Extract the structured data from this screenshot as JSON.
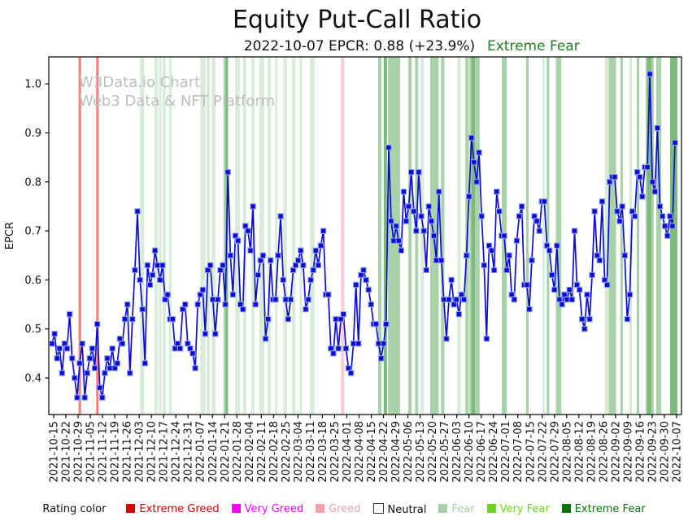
{
  "title": "Equity Put-Call Ratio",
  "subtitle": {
    "text": "2022-10-07 EPCR: 0.88 (+23.9%)",
    "rating": "Extreme Fear",
    "rating_color": "#1e7d1e"
  },
  "watermark": {
    "line1": "W3Data.io Chart",
    "line2": "Web3 Data & NFT Platform"
  },
  "chart_data": {
    "type": "line",
    "title": "Equity Put-Call Ratio",
    "xlabel": "",
    "ylabel": "EPCR",
    "ylim": [
      0.33,
      1.06
    ],
    "yticks": [
      0.4,
      0.5,
      0.6,
      0.7,
      0.8,
      0.9,
      1.0
    ],
    "grid": false,
    "legend_position": "bottom",
    "x_tick_labels": [
      "2021-10-15",
      "2021-10-22",
      "2021-10-29",
      "2021-11-05",
      "2021-11-12",
      "2021-11-19",
      "2021-11-26",
      "2021-12-03",
      "2021-12-10",
      "2021-12-17",
      "2021-12-24",
      "2021-12-31",
      "2022-01-07",
      "2022-01-14",
      "2022-01-21",
      "2022-01-28",
      "2022-02-04",
      "2022-02-11",
      "2022-02-18",
      "2022-02-25",
      "2022-03-04",
      "2022-03-11",
      "2022-03-18",
      "2022-03-25",
      "2022-04-01",
      "2022-04-08",
      "2022-04-15",
      "2022-04-22",
      "2022-04-29",
      "2022-05-06",
      "2022-05-13",
      "2022-05-20",
      "2022-05-27",
      "2022-06-03",
      "2022-06-10",
      "2022-06-17",
      "2022-06-24",
      "2022-07-01",
      "2022-07-08",
      "2022-07-15",
      "2022-07-22",
      "2022-07-29",
      "2022-08-05",
      "2022-08-12",
      "2022-08-19",
      "2022-08-26",
      "2022-09-02",
      "2022-09-09",
      "2022-09-16",
      "2022-09-23",
      "2022-09-30",
      "2022-10-07"
    ],
    "series": [
      {
        "name": "EPCR",
        "color": "#0c0cd4",
        "marker": "square",
        "marker_edge_color": "#93a6ea",
        "values": [
          0.47,
          0.49,
          0.44,
          0.46,
          0.41,
          0.47,
          0.46,
          0.53,
          0.44,
          0.4,
          0.36,
          0.43,
          0.47,
          0.36,
          0.41,
          0.44,
          0.46,
          0.42,
          0.51,
          0.38,
          0.36,
          0.41,
          0.44,
          0.42,
          0.46,
          0.42,
          0.43,
          0.48,
          0.47,
          0.52,
          0.55,
          0.41,
          0.52,
          0.62,
          0.74,
          0.6,
          0.54,
          0.43,
          0.63,
          0.59,
          0.61,
          0.66,
          0.63,
          0.6,
          0.63,
          0.56,
          0.57,
          0.52,
          0.52,
          0.46,
          0.47,
          0.46,
          0.54,
          0.55,
          0.47,
          0.46,
          0.45,
          0.42,
          0.55,
          0.57,
          0.58,
          0.49,
          0.62,
          0.63,
          0.56,
          0.49,
          0.56,
          0.62,
          0.63,
          0.55,
          0.82,
          0.65,
          0.57,
          0.69,
          0.68,
          0.55,
          0.54,
          0.71,
          0.7,
          0.66,
          0.75,
          0.55,
          0.61,
          0.64,
          0.65,
          0.48,
          0.52,
          0.64,
          0.56,
          0.56,
          0.65,
          0.73,
          0.6,
          0.56,
          0.52,
          0.56,
          0.62,
          0.63,
          0.64,
          0.66,
          0.63,
          0.54,
          0.56,
          0.6,
          0.62,
          0.66,
          0.63,
          0.67,
          0.7,
          0.57,
          0.57,
          0.46,
          0.45,
          0.52,
          0.46,
          0.52,
          0.53,
          0.46,
          0.42,
          0.41,
          0.47,
          0.59,
          0.47,
          0.61,
          0.62,
          0.6,
          0.58,
          0.55,
          0.51,
          0.51,
          0.47,
          0.44,
          0.47,
          0.51,
          0.87,
          0.72,
          0.68,
          0.71,
          0.68,
          0.66,
          0.78,
          0.72,
          0.75,
          0.82,
          0.74,
          0.7,
          0.82,
          0.73,
          0.7,
          0.62,
          0.75,
          0.72,
          0.69,
          0.64,
          0.78,
          0.64,
          0.56,
          0.48,
          0.56,
          0.6,
          0.55,
          0.56,
          0.53,
          0.57,
          0.56,
          0.65,
          0.77,
          0.89,
          0.84,
          0.8,
          0.86,
          0.73,
          0.63,
          0.48,
          0.67,
          0.66,
          0.62,
          0.78,
          0.74,
          0.69,
          0.69,
          0.62,
          0.65,
          0.57,
          0.56,
          0.68,
          0.73,
          0.75,
          0.59,
          0.59,
          0.54,
          0.64,
          0.73,
          0.72,
          0.7,
          0.76,
          0.76,
          0.67,
          0.66,
          0.61,
          0.58,
          0.67,
          0.56,
          0.55,
          0.57,
          0.56,
          0.58,
          0.56,
          0.7,
          0.59,
          0.58,
          0.52,
          0.5,
          0.57,
          0.52,
          0.61,
          0.74,
          0.65,
          0.64,
          0.76,
          0.6,
          0.59,
          0.8,
          0.81,
          0.81,
          0.74,
          0.72,
          0.75,
          0.65,
          0.52,
          0.57,
          0.74,
          0.73,
          0.82,
          0.81,
          0.77,
          0.83,
          0.83,
          1.02,
          0.8,
          0.78,
          0.91,
          0.75,
          0.73,
          0.71,
          0.69,
          0.73,
          0.71,
          0.88
        ]
      }
    ],
    "band_colors": {
      "red": "#f5837b",
      "pink": "#fbced3",
      "light": "#d9ecd9",
      "medium": "#a8d2a8",
      "dark": "#7cba7c"
    },
    "bands": [
      {
        "d": 11,
        "w": 1,
        "c": "red"
      },
      {
        "d": 18,
        "w": 1,
        "c": "red"
      },
      {
        "d": 35.5,
        "w": 1.6,
        "c": "light"
      },
      {
        "d": 41.3,
        "w": 1.2,
        "c": "light"
      },
      {
        "d": 43,
        "w": 1,
        "c": "light"
      },
      {
        "d": 44.5,
        "w": 1.2,
        "c": "light"
      },
      {
        "d": 47,
        "w": 1,
        "c": "light"
      },
      {
        "d": 59.5,
        "w": 2,
        "c": "light"
      },
      {
        "d": 62,
        "w": 1.2,
        "c": "light"
      },
      {
        "d": 64,
        "w": 1.5,
        "c": "light"
      },
      {
        "d": 68.8,
        "w": 1.8,
        "c": "medium"
      },
      {
        "d": 69.6,
        "w": 0.6,
        "c": "dark"
      },
      {
        "d": 73.3,
        "w": 1.9,
        "c": "light"
      },
      {
        "d": 76.5,
        "w": 1.3,
        "c": "light"
      },
      {
        "d": 79.8,
        "w": 1.2,
        "c": "light"
      },
      {
        "d": 83,
        "w": 1.9,
        "c": "light"
      },
      {
        "d": 86.3,
        "w": 1.3,
        "c": "light"
      },
      {
        "d": 89.2,
        "w": 1,
        "c": "light"
      },
      {
        "d": 92.5,
        "w": 1.5,
        "c": "light"
      },
      {
        "d": 96,
        "w": 1.3,
        "c": "light"
      },
      {
        "d": 99,
        "w": 1,
        "c": "light"
      },
      {
        "d": 103.2,
        "w": 1.7,
        "c": "light"
      },
      {
        "d": 115.5,
        "w": 1.3,
        "c": "pink"
      },
      {
        "d": 130.3,
        "w": 1.3,
        "c": "medium"
      },
      {
        "d": 132.5,
        "w": 1.3,
        "c": "dark"
      },
      {
        "d": 134.2,
        "w": 4.8,
        "c": "medium"
      },
      {
        "d": 142.3,
        "w": 1.3,
        "c": "medium"
      },
      {
        "d": 145,
        "w": 1.2,
        "c": "medium"
      },
      {
        "d": 147.2,
        "w": 1.3,
        "c": "light"
      },
      {
        "d": 151,
        "w": 3.4,
        "c": "medium"
      },
      {
        "d": 155.3,
        "w": 1.3,
        "c": "medium"
      },
      {
        "d": 161.8,
        "w": 1.4,
        "c": "light"
      },
      {
        "d": 165,
        "w": 1.4,
        "c": "medium"
      },
      {
        "d": 166.7,
        "w": 4,
        "c": "medium"
      },
      {
        "d": 167.4,
        "w": 1.4,
        "c": "dark"
      },
      {
        "d": 179.5,
        "w": 1.9,
        "c": "medium"
      },
      {
        "d": 189.2,
        "w": 1,
        "c": "medium"
      },
      {
        "d": 195.7,
        "w": 1,
        "c": "light"
      },
      {
        "d": 197.4,
        "w": 1,
        "c": "medium"
      },
      {
        "d": 201,
        "w": 2.2,
        "c": "medium"
      },
      {
        "d": 220.5,
        "w": 1.6,
        "c": "light"
      },
      {
        "d": 222.1,
        "w": 2.9,
        "c": "medium"
      },
      {
        "d": 226.7,
        "w": 1,
        "c": "medium"
      },
      {
        "d": 230.3,
        "w": 1,
        "c": "light"
      },
      {
        "d": 233.2,
        "w": 1,
        "c": "medium"
      },
      {
        "d": 236.8,
        "w": 3.2,
        "c": "medium"
      },
      {
        "d": 237.4,
        "w": 1.6,
        "c": "dark"
      },
      {
        "d": 241,
        "w": 2,
        "c": "medium"
      },
      {
        "d": 246.5,
        "w": 2.9,
        "c": "dark"
      }
    ],
    "legend": {
      "label": "Rating color",
      "items": [
        {
          "label": "Extreme Greed",
          "swatch": "#d40000",
          "text_color": "#d40000",
          "border": false
        },
        {
          "label": "Very Greed",
          "swatch": "#ff00ff",
          "text_color": "#ff00ff",
          "border": false
        },
        {
          "label": "Greed",
          "swatch": "#f2a2aa",
          "text_color": "#f2a2aa",
          "border": false
        },
        {
          "label": "Neutral",
          "swatch": "#ffffff",
          "text_color": "#111111",
          "border": true
        },
        {
          "label": "Fear",
          "swatch": "#a8d0a8",
          "text_color": "#a8d0a8",
          "border": false
        },
        {
          "label": "Very Fear",
          "swatch": "#6ed41c",
          "text_color": "#6ed41c",
          "border": false
        },
        {
          "label": "Extreme Fear",
          "swatch": "#0b750b",
          "text_color": "#0b750b",
          "border": false
        }
      ]
    }
  }
}
